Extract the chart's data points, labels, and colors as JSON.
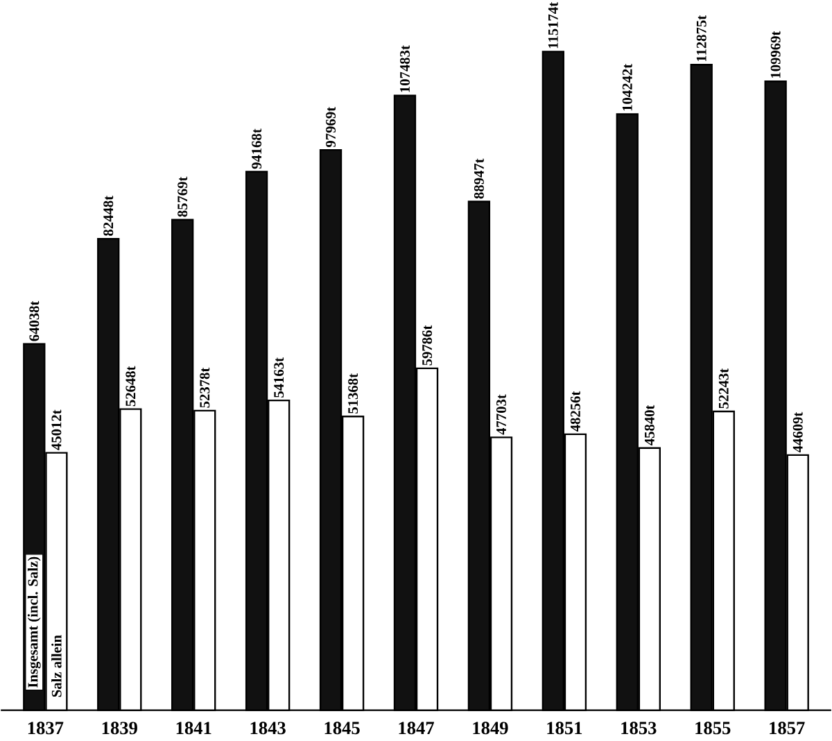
{
  "chart_data": {
    "type": "bar",
    "categories": [
      "1837",
      "1839",
      "1841",
      "1843",
      "1845",
      "1847",
      "1849",
      "1851",
      "1853",
      "1855",
      "1857"
    ],
    "series": [
      {
        "name": "Insgesamt (incl. Salz)",
        "color": "#111111",
        "values": [
          64038,
          82448,
          85769,
          94168,
          97969,
          107483,
          88947,
          115174,
          104242,
          112875,
          109969
        ],
        "value_labels": [
          "64038t",
          "82448t",
          "85769t",
          "94168t",
          "97969t",
          "107483t",
          "88947t",
          "115174t",
          "104242t",
          "112875t",
          "109969t"
        ]
      },
      {
        "name": "Salz allein",
        "color": "#ffffff",
        "values": [
          45012,
          52648,
          52378,
          54163,
          51368,
          59786,
          47703,
          48256,
          45840,
          52243,
          44609
        ],
        "value_labels": [
          "45012t",
          "52648t",
          "52378t",
          "54163t",
          "51368t",
          "59786t",
          "47703t",
          "48256t",
          "45840t",
          "52243t",
          "44609t"
        ]
      }
    ]
  }
}
